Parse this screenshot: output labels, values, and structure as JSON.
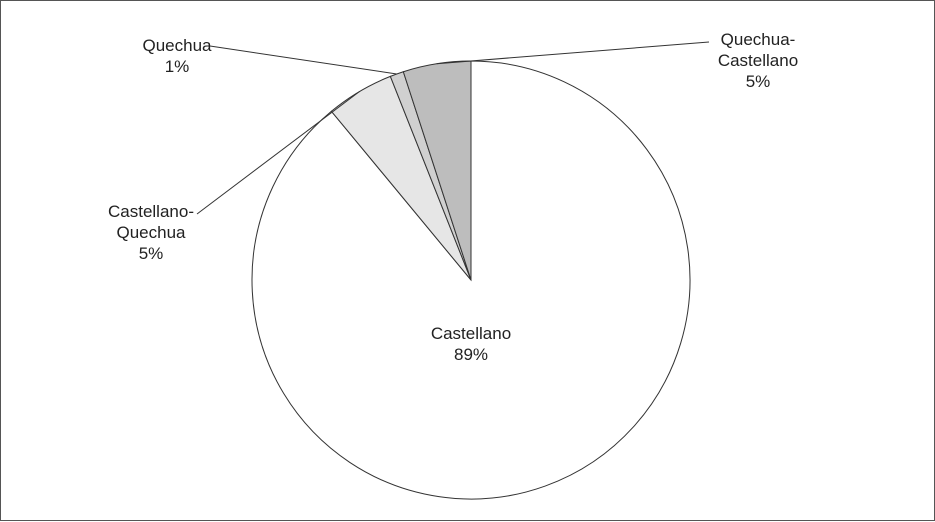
{
  "chart_data": {
    "type": "pie",
    "title": "",
    "slices": [
      {
        "name": "Castellano",
        "label_lines": [
          "Castellano",
          "89%"
        ],
        "value": 89,
        "color": "#ffffff"
      },
      {
        "name": "Castellano-Quechua",
        "label_lines": [
          "Castellano-",
          "Quechua",
          "5%"
        ],
        "value": 5,
        "color": "#e6e6e6"
      },
      {
        "name": "Quechua",
        "label_lines": [
          "Quechua",
          "1%"
        ],
        "value": 1,
        "color": "#d0d0d0"
      },
      {
        "name": "Quechua-Castellano",
        "label_lines": [
          "Quechua-",
          "Castellano",
          "5%"
        ],
        "value": 5,
        "color": "#bdbdbd"
      }
    ],
    "legend": "none",
    "stroke_color": "#333333"
  }
}
